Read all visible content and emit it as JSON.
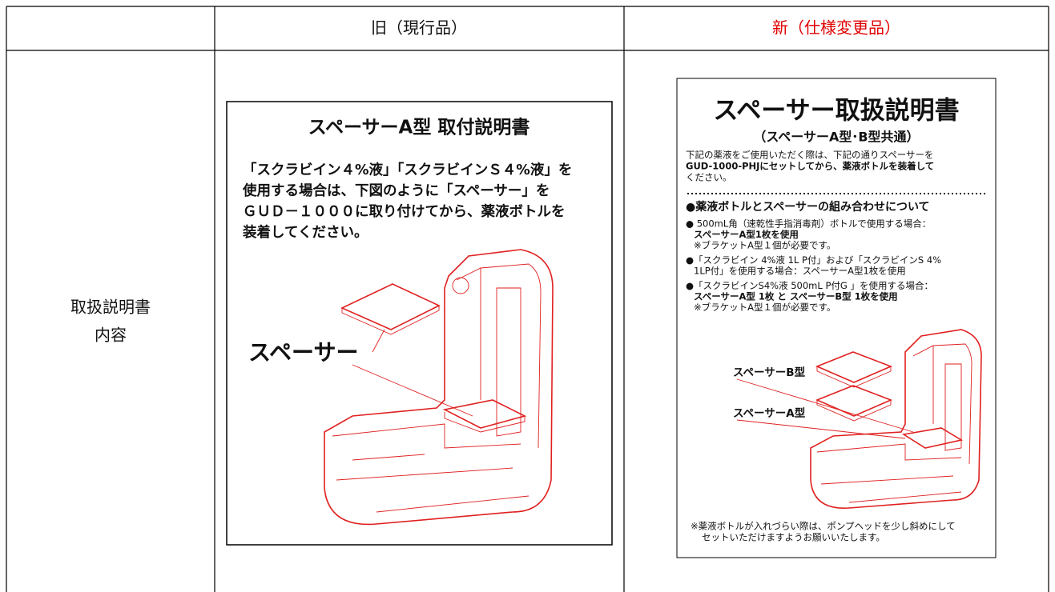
{
  "header": {
    "old": "旧（現行品）",
    "new": "新（仕様変更品）"
  },
  "row_label": [
    "取扱説明書",
    "内容"
  ],
  "old_doc": {
    "title": "スペーサーA型 取付説明書",
    "body": [
      "「スクラビイン４%液」「スクラビインＳ４%液」を",
      "使用する場合は、下図のように「スペーサー」を",
      "ＧＵＤ－１０００に取り付けてから、薬液ボトルを",
      "装着してください。"
    ],
    "callout": "スペーサー"
  },
  "new_doc": {
    "title": "スペーサー取扱説明書",
    "subtitle": "（スペーサーA型･B型共通）",
    "intro": [
      "下記の薬液をご使用いただく際は、下記の通りスペーサーを",
      "GUD-1000-PHJにセットしてから、薬液ボトルを装着して",
      "ください。"
    ],
    "section": "●薬液ボトルとスペーサーの組み合わせについて",
    "items": [
      [
        "● 500mL角（速乾性手指消毒剤）ボトルで使用する場合：",
        "スペーサーA型1枚を使用",
        "※ブラケットA型１個が必要です。"
      ],
      [
        "●「スクラビイン 4%液 1L P付」および「スクラビインS 4%",
        "1LP付」を使用する場合：スペーサーA型1枚を使用"
      ],
      [
        "●「スクラビインS4%液 500mL P付G 」を使用する場合：",
        "スペーサーA型 1枚 と スペーサーB型 1枚を使用",
        "※ブラケットA型１個が必要です。"
      ]
    ],
    "labels": [
      "スペーサーB型",
      "スペーサーA型"
    ],
    "note": [
      "※薬液ボトルが入れづらい際は、ポンプヘッドを少し斜めにして",
      "セットいただけますようお願いいたします。"
    ]
  }
}
